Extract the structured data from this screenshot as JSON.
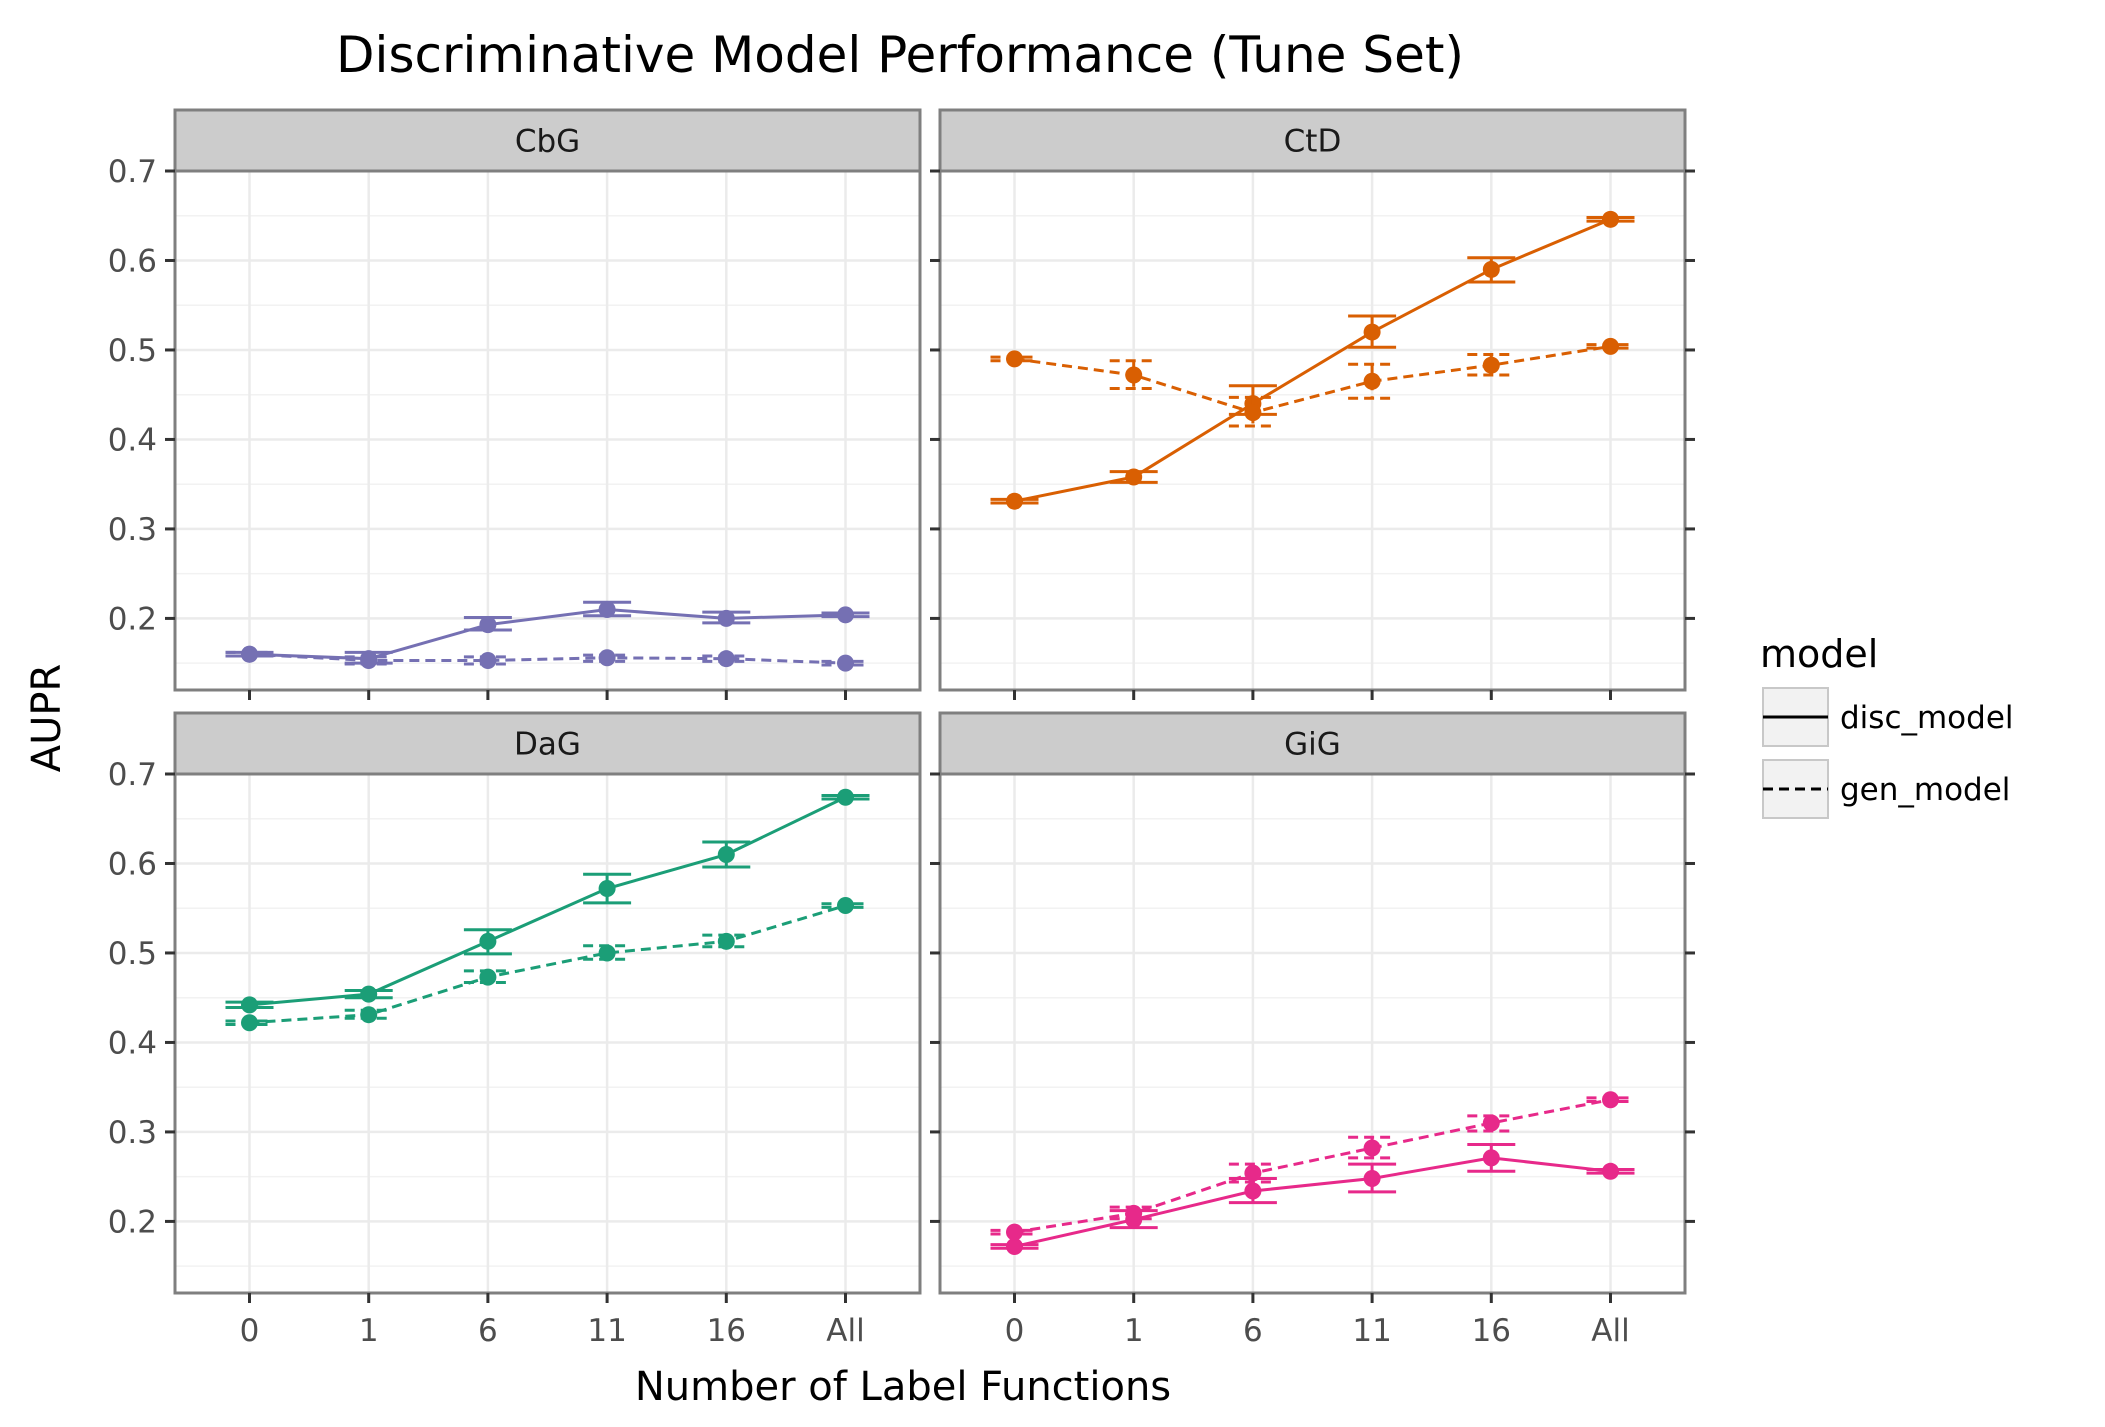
{
  "chart_data": {
    "type": "line",
    "title": "Discriminative Model Performance (Tune Set)",
    "xlabel": "Number of Label Functions",
    "ylabel": "AUPR",
    "categories": [
      "0",
      "1",
      "6",
      "11",
      "16",
      "All"
    ],
    "ylim": [
      0.12,
      0.7
    ],
    "yticks": [
      0.2,
      0.3,
      0.4,
      0.5,
      0.6,
      0.7
    ],
    "yticks_text": [
      "0.2",
      "0.3",
      "0.4",
      "0.5",
      "0.6",
      "0.7"
    ],
    "grid": true,
    "legend": {
      "title": "model",
      "position": "right",
      "entries": [
        {
          "label": "disc_model",
          "linetype": "solid"
        },
        {
          "label": "gen_model",
          "linetype": "dashed"
        }
      ]
    },
    "panels": [
      {
        "name": "CbG",
        "color": "#7570b3",
        "series": [
          {
            "name": "disc_model",
            "values": [
              0.16,
              0.155,
              0.193,
              0.21,
              0.2,
              0.204
            ],
            "err_lo": [
              0.158,
              0.15,
              0.187,
              0.203,
              0.195,
              0.202
            ],
            "err_hi": [
              0.162,
              0.162,
              0.201,
              0.218,
              0.207,
              0.206
            ]
          },
          {
            "name": "gen_model",
            "values": [
              0.16,
              0.153,
              0.153,
              0.156,
              0.155,
              0.15
            ],
            "err_lo": [
              0.158,
              0.149,
              0.149,
              0.152,
              0.152,
              0.148
            ],
            "err_hi": [
              0.162,
              0.157,
              0.157,
              0.159,
              0.158,
              0.152
            ]
          }
        ]
      },
      {
        "name": "CtD",
        "color": "#d95f02",
        "series": [
          {
            "name": "disc_model",
            "values": [
              0.331,
              0.358,
              0.44,
              0.52,
              0.59,
              0.646
            ],
            "err_lo": [
              0.329,
              0.352,
              0.428,
              0.503,
              0.576,
              0.644
            ],
            "err_hi": [
              0.333,
              0.364,
              0.46,
              0.538,
              0.603,
              0.648
            ]
          },
          {
            "name": "gen_model",
            "values": [
              0.49,
              0.472,
              0.43,
              0.465,
              0.483,
              0.504
            ],
            "err_lo": [
              0.488,
              0.457,
              0.415,
              0.446,
              0.472,
              0.502
            ],
            "err_hi": [
              0.492,
              0.488,
              0.447,
              0.484,
              0.495,
              0.506
            ]
          }
        ]
      },
      {
        "name": "DaG",
        "color": "#1b9e77",
        "series": [
          {
            "name": "disc_model",
            "values": [
              0.442,
              0.454,
              0.513,
              0.572,
              0.61,
              0.674
            ],
            "err_lo": [
              0.439,
              0.45,
              0.499,
              0.556,
              0.596,
              0.672
            ],
            "err_hi": [
              0.445,
              0.458,
              0.526,
              0.588,
              0.624,
              0.676
            ]
          },
          {
            "name": "gen_model",
            "values": [
              0.422,
              0.431,
              0.473,
              0.5,
              0.513,
              0.553
            ],
            "err_lo": [
              0.42,
              0.427,
              0.467,
              0.493,
              0.507,
              0.551
            ],
            "err_hi": [
              0.424,
              0.436,
              0.48,
              0.508,
              0.52,
              0.555
            ]
          }
        ]
      },
      {
        "name": "GiG",
        "color": "#e7298a",
        "series": [
          {
            "name": "disc_model",
            "values": [
              0.172,
              0.202,
              0.234,
              0.248,
              0.271,
              0.256
            ],
            "err_lo": [
              0.17,
              0.193,
              0.221,
              0.233,
              0.256,
              0.254
            ],
            "err_hi": [
              0.174,
              0.212,
              0.248,
              0.264,
              0.286,
              0.258
            ]
          },
          {
            "name": "gen_model",
            "values": [
              0.188,
              0.209,
              0.254,
              0.282,
              0.31,
              0.336
            ],
            "err_lo": [
              0.186,
              0.203,
              0.244,
              0.271,
              0.301,
              0.334
            ],
            "err_hi": [
              0.19,
              0.216,
              0.264,
              0.294,
              0.318,
              0.338
            ]
          }
        ]
      }
    ]
  }
}
